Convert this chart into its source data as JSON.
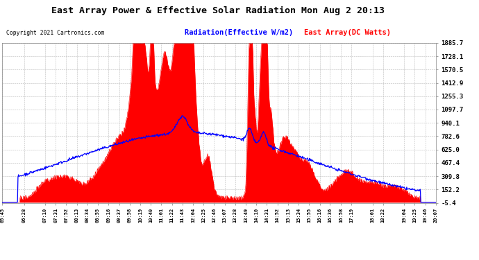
{
  "title": "East Array Power & Effective Solar Radiation Mon Aug 2 20:13",
  "copyright": "Copyright 2021 Cartronics.com",
  "legend_blue": "Radiation(Effective W/m2)",
  "legend_red": "East Array(DC Watts)",
  "ymin": -5.4,
  "ymax": 1885.7,
  "yticks": [
    1885.7,
    1728.1,
    1570.5,
    1412.9,
    1255.3,
    1097.7,
    940.1,
    782.6,
    625.0,
    467.4,
    309.8,
    152.2,
    -5.4
  ],
  "bg_color": "#ffffff",
  "plot_bg_color": "#ffffff",
  "grid_color": "#aaaaaa",
  "red_color": "#ff0000",
  "blue_color": "#0000ff",
  "title_color": "#000000",
  "copyright_color": "#000000",
  "legend_blue_color": "#0000ff",
  "legend_red_color": "#ff0000",
  "xtick_labels": [
    "05:45",
    "06:28",
    "07:10",
    "07:31",
    "07:52",
    "08:13",
    "08:34",
    "08:55",
    "09:16",
    "09:37",
    "09:58",
    "10:19",
    "10:40",
    "11:01",
    "11:22",
    "11:43",
    "12:04",
    "12:25",
    "12:46",
    "13:07",
    "13:28",
    "13:49",
    "14:10",
    "14:31",
    "14:52",
    "15:13",
    "15:34",
    "15:55",
    "16:16",
    "16:36",
    "16:58",
    "17:19",
    "18:01",
    "18:22",
    "19:04",
    "19:25",
    "19:46",
    "20:07"
  ]
}
